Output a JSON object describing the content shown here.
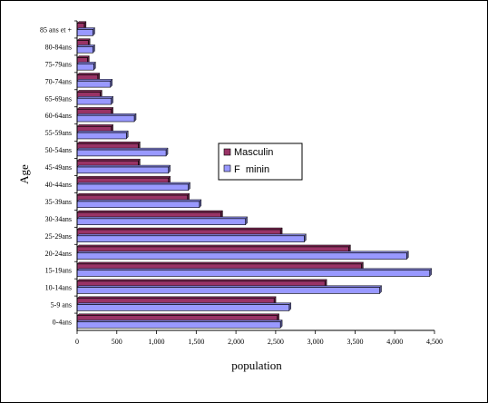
{
  "chart_data": {
    "type": "bar",
    "orientation": "horizontal",
    "xlabel": "population",
    "ylabel": "Age",
    "xlim": [
      0,
      4500
    ],
    "x_ticks": [
      0,
      500,
      1000,
      1500,
      2000,
      2500,
      3000,
      3500,
      4000,
      4500
    ],
    "x_tick_labels": [
      "0",
      "500",
      "1,000",
      "1,500",
      "2,000",
      "2,500",
      "3,000",
      "3,500",
      "4,000",
      "4,500"
    ],
    "grid": false,
    "legend_position": "middle-right",
    "categories": [
      "0-4ans",
      "5-9 ans",
      "10-14ans",
      "15-19ans",
      "20-24ans",
      "25-29ans",
      "30-34ans",
      "35-39ans",
      "40-44ans",
      "45-49ans",
      "50-54ans",
      "55-59ans",
      "60-64ans",
      "65-69ans",
      "70-74ans",
      "75-79ans",
      "80-84ans",
      "85 ans et +"
    ],
    "series": [
      {
        "name": "Masculin",
        "color": "#993366",
        "values": [
          2520,
          2480,
          3120,
          3580,
          3420,
          2560,
          1810,
          1390,
          1150,
          770,
          770,
          430,
          430,
          290,
          260,
          130,
          140,
          90
        ]
      },
      {
        "name": "F  minin",
        "color": "#9999ff",
        "values": [
          2560,
          2670,
          3810,
          4440,
          4150,
          2860,
          2120,
          1540,
          1400,
          1150,
          1120,
          620,
          720,
          430,
          420,
          210,
          200,
          200
        ]
      }
    ]
  }
}
